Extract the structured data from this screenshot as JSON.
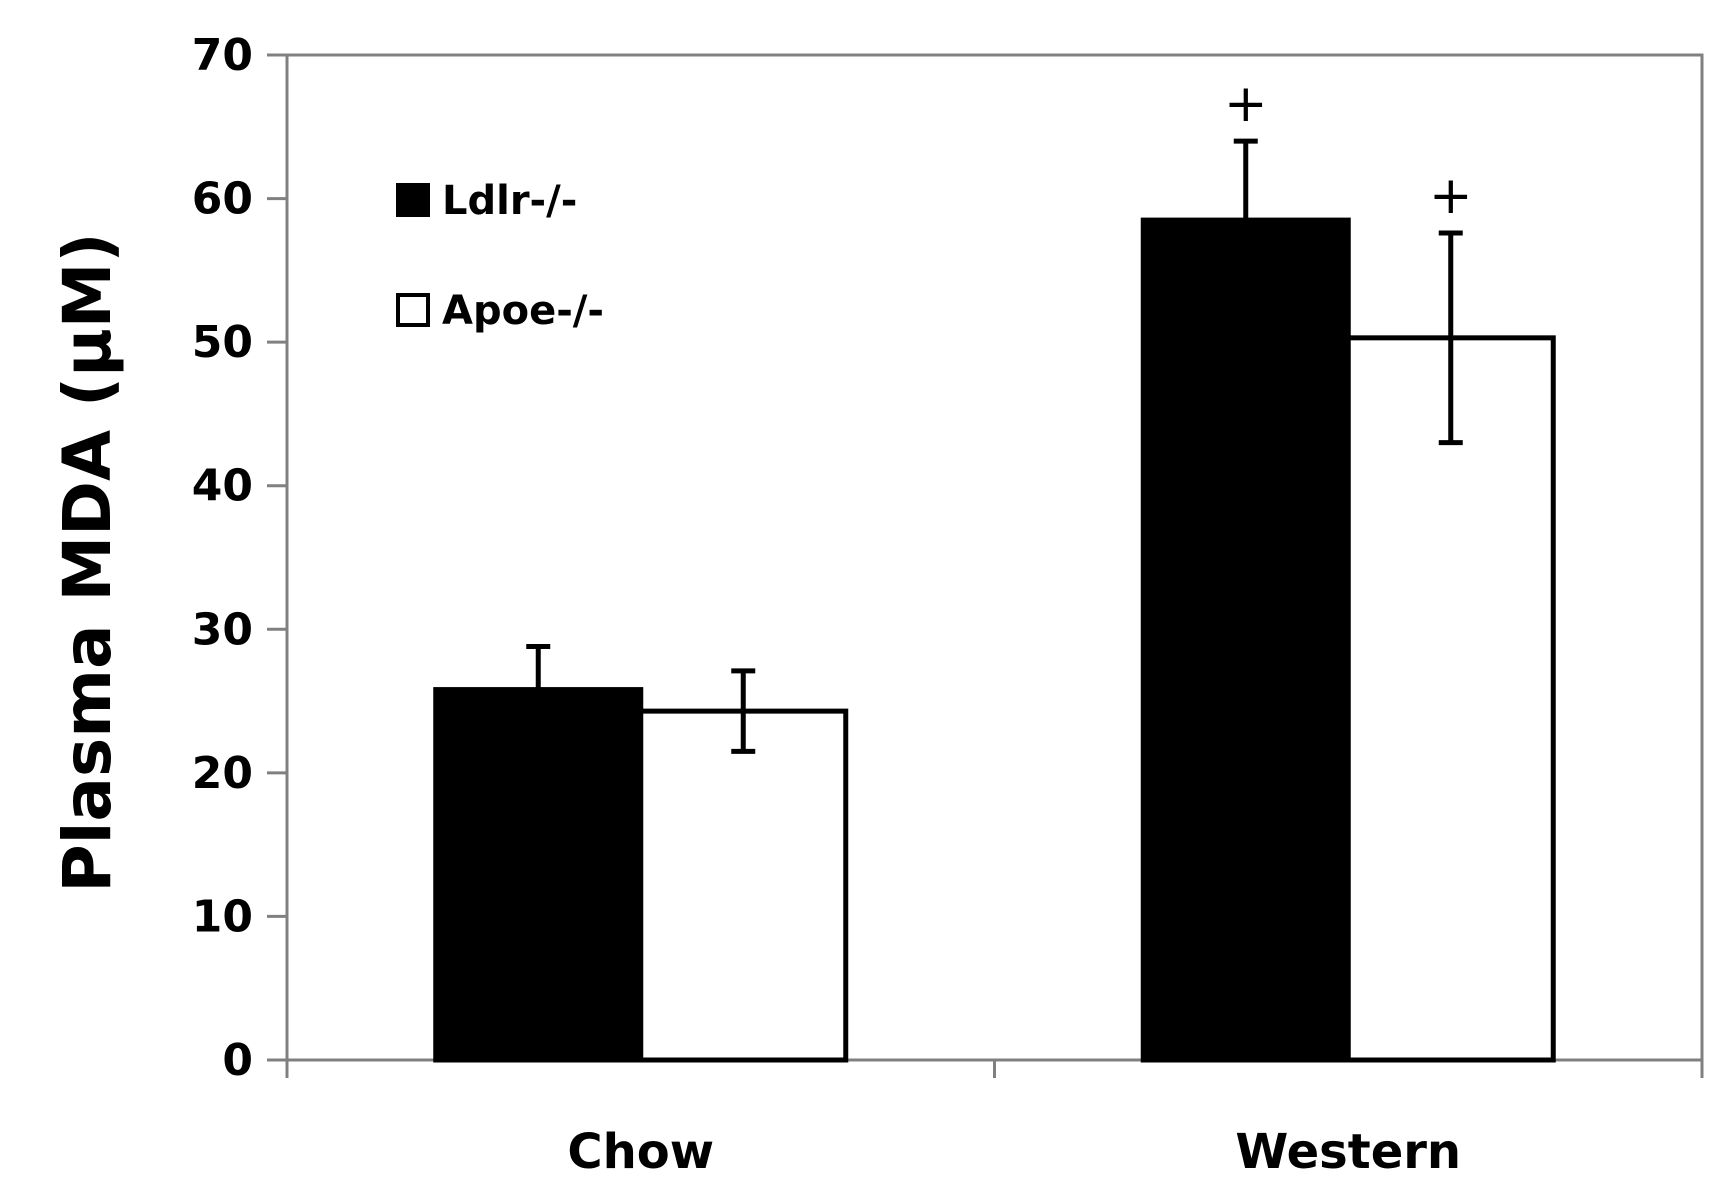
{
  "chart_data": {
    "type": "bar",
    "title": "",
    "xlabel": "",
    "ylabel": "Plasma MDA (μM)",
    "ylim": [
      0,
      70
    ],
    "yticks": [
      "0",
      "10",
      "20",
      "30",
      "40",
      "50",
      "60",
      "70"
    ],
    "categories": [
      "Chow",
      "Western"
    ],
    "series": [
      {
        "name": "Ldlr-/-",
        "values": [
          25.8,
          58.5
        ],
        "error": [
          3.0,
          5.5
        ],
        "fill": "#000000"
      },
      {
        "name": "Apoe-/-",
        "values": [
          24.3,
          50.3
        ],
        "error": [
          2.8,
          7.3
        ],
        "fill": "#ffffff"
      }
    ],
    "annotations": [
      {
        "text": "+",
        "category": "Western",
        "series": "Ldlr-/-"
      },
      {
        "text": "+",
        "category": "Western",
        "series": "Apoe-/-"
      }
    ],
    "grid": false,
    "legend": "top-left"
  }
}
